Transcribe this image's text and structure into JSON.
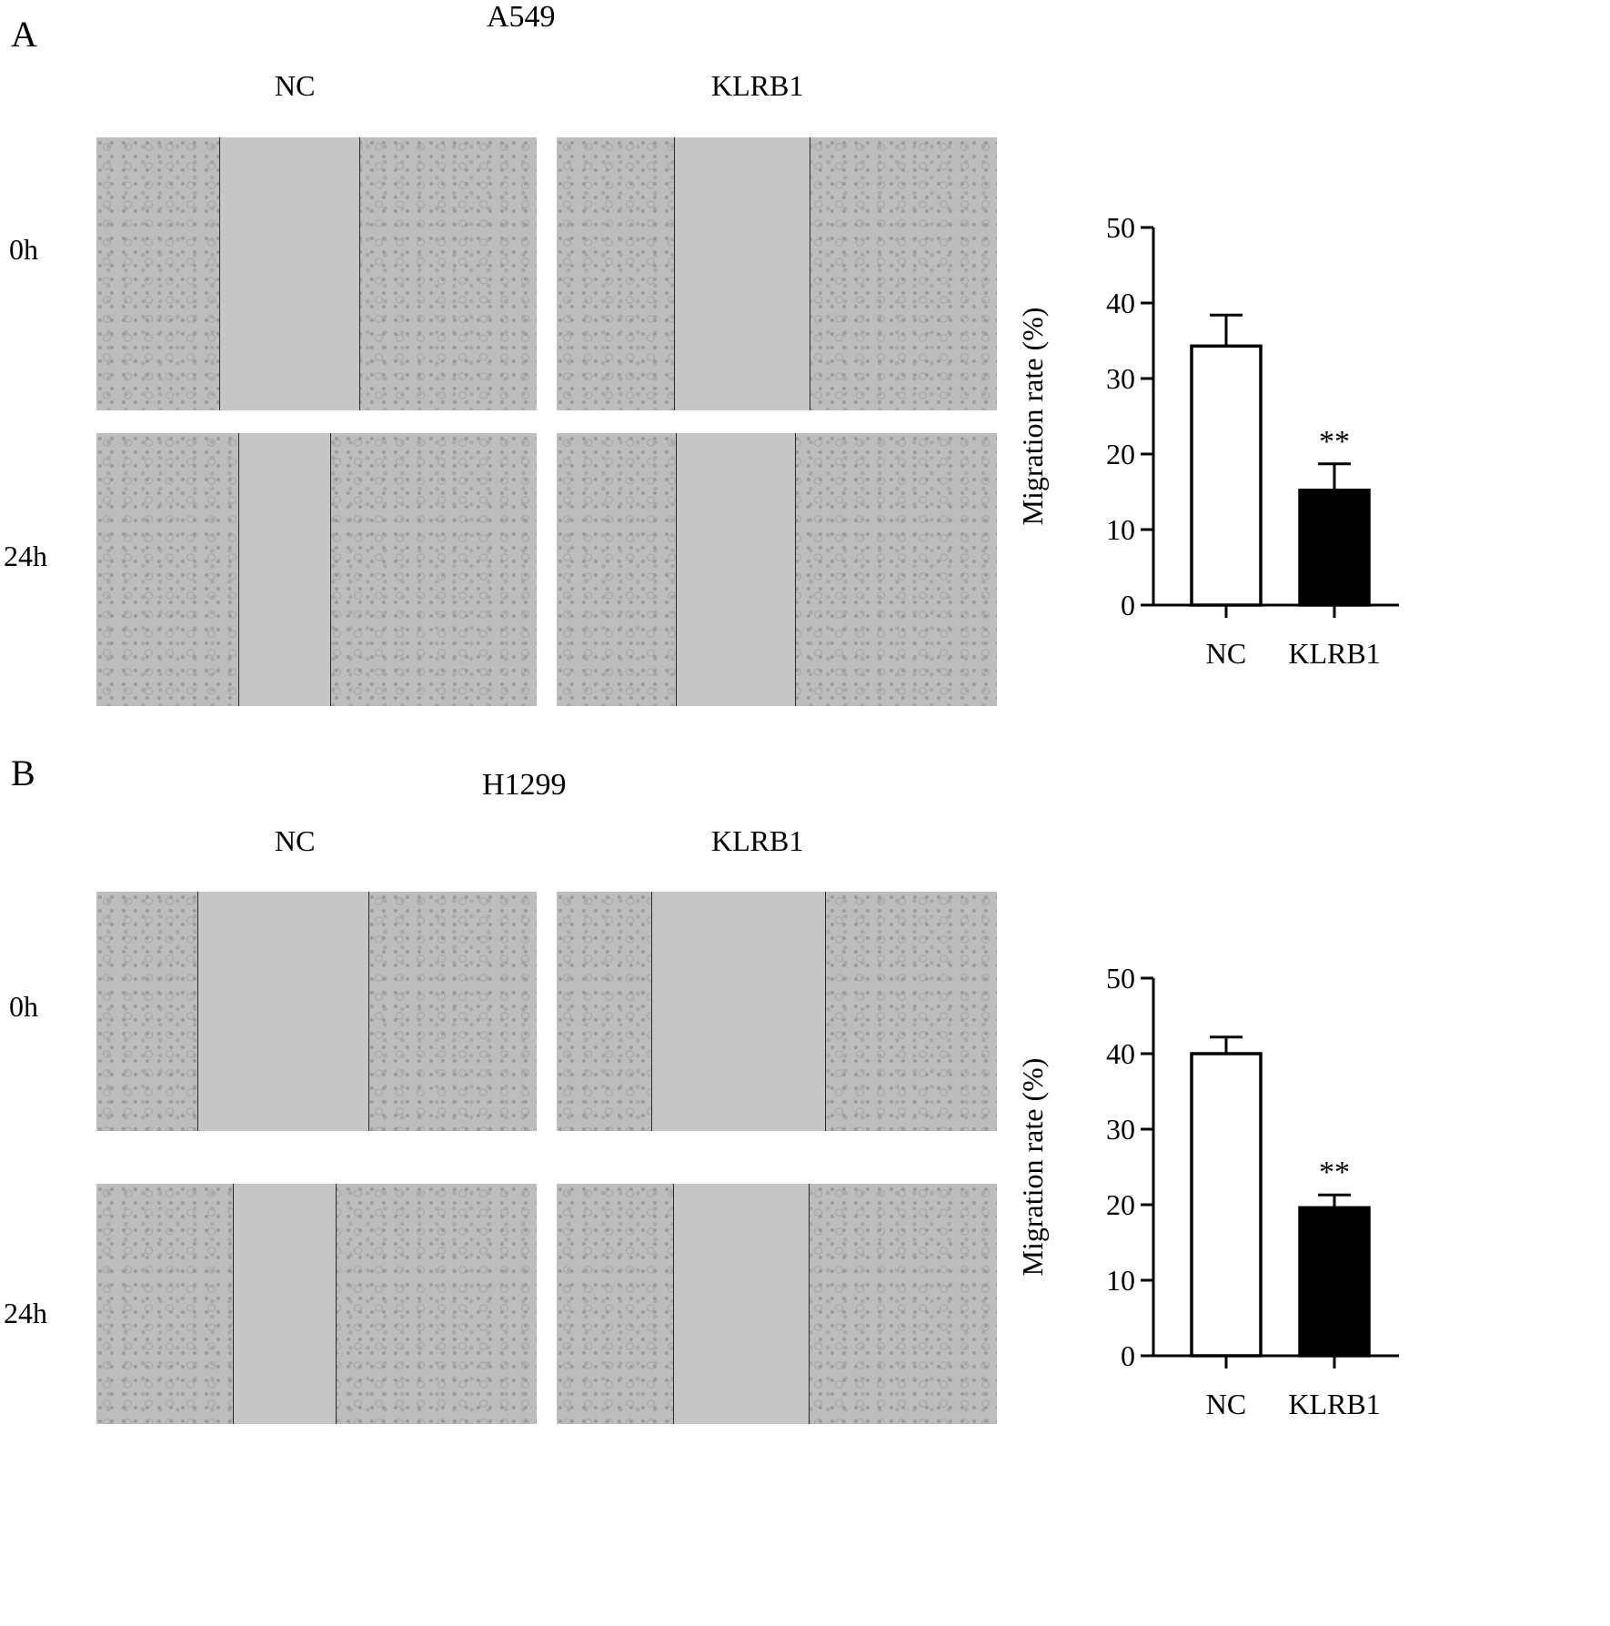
{
  "panels": [
    {
      "letter": "A",
      "cell_line": "A549",
      "columns": [
        "NC",
        "KLRB1"
      ],
      "rows": [
        "0h",
        "24h"
      ]
    },
    {
      "letter": "B",
      "cell_line": "H1299",
      "columns": [
        "NC",
        "KLRB1"
      ],
      "rows": [
        "0h",
        "24h"
      ]
    }
  ],
  "chart_data": [
    {
      "type": "bar",
      "categories": [
        "NC",
        "KLRB1"
      ],
      "values": [
        34.3,
        15.2
      ],
      "errors": [
        4.1,
        3.5
      ],
      "significance": [
        "",
        "**"
      ],
      "bar_fill": [
        "#ffffff",
        "#000000"
      ],
      "title": "",
      "xlabel": "",
      "ylabel": "Migration rate (%)",
      "ylim": [
        0,
        50
      ],
      "yticks": [
        0,
        10,
        20,
        30,
        40,
        50
      ],
      "grid": false
    },
    {
      "type": "bar",
      "categories": [
        "NC",
        "KLRB1"
      ],
      "values": [
        40.0,
        19.6
      ],
      "errors": [
        2.2,
        1.7
      ],
      "significance": [
        "",
        "**"
      ],
      "bar_fill": [
        "#ffffff",
        "#000000"
      ],
      "title": "",
      "xlabel": "",
      "ylabel": "Migration rate (%)",
      "ylim": [
        0,
        50
      ],
      "yticks": [
        0,
        10,
        20,
        30,
        40,
        50
      ],
      "grid": false
    }
  ]
}
